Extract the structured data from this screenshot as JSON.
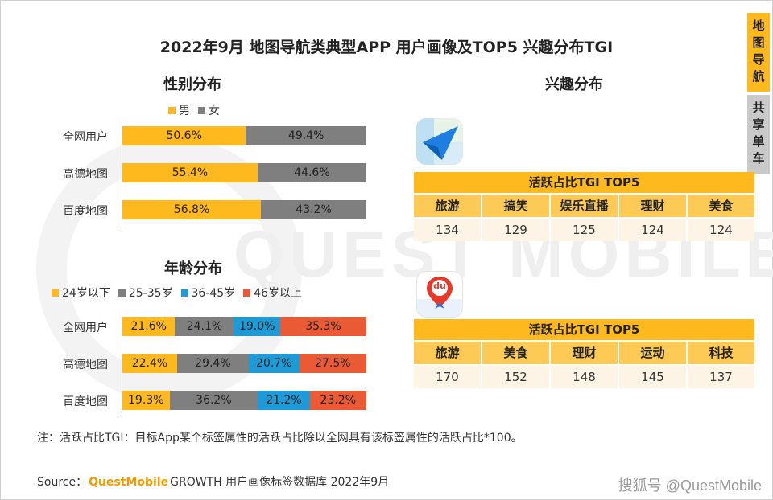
{
  "title": "2022年9月 地图导航类典型APP 用户画像及TOP5 兴趣分布TGI",
  "side_tabs": [
    {
      "label": "地图导航",
      "active": true
    },
    {
      "label": "共享单车",
      "active": false
    }
  ],
  "watermark": "QUEST MOBILE",
  "gender": {
    "section_title": "性别分布",
    "legend": [
      "男",
      "女"
    ],
    "colors": [
      "#fdb91d",
      "#7f7f7f"
    ],
    "rows": [
      {
        "label": "全网用户",
        "values": [
          "50.6%",
          "49.4%"
        ]
      },
      {
        "label": "高德地图",
        "values": [
          "55.4%",
          "44.6%"
        ]
      },
      {
        "label": "百度地图",
        "values": [
          "56.8%",
          "43.2%"
        ]
      }
    ]
  },
  "age": {
    "section_title": "年龄分布",
    "legend": [
      "24岁以下",
      "25-35岁",
      "36-45岁",
      "46岁以上"
    ],
    "colors": [
      "#fdb91d",
      "#7f7f7f",
      "#1e9ad6",
      "#ea5a35"
    ],
    "rows": [
      {
        "label": "全网用户",
        "values": [
          "21.6%",
          "24.1%",
          "19.0%",
          "35.3%"
        ]
      },
      {
        "label": "高德地图",
        "values": [
          "22.4%",
          "29.4%",
          "20.7%",
          "27.5%"
        ]
      },
      {
        "label": "百度地图",
        "values": [
          "19.3%",
          "36.2%",
          "21.2%",
          "23.2%"
        ]
      }
    ]
  },
  "interest": {
    "section_title": "兴趣分布",
    "tables": [
      {
        "app_icon": "amap-navigation-icon",
        "header": "活跃占比TGI TOP5",
        "columns": [
          "旅游",
          "搞笑",
          "娱乐直播",
          "理财",
          "美食"
        ],
        "values": [
          "134",
          "129",
          "125",
          "124",
          "124"
        ]
      },
      {
        "app_icon": "baidu-map-icon",
        "app_icon_text": "du",
        "header": "活跃占比TGI TOP5",
        "columns": [
          "旅游",
          "美食",
          "理财",
          "运动",
          "科技"
        ],
        "values": [
          "170",
          "152",
          "148",
          "145",
          "137"
        ]
      }
    ]
  },
  "note": "注：活跃占比TGI：目标App某个标签属性的活跃占比除以全网具有该标签属性的活跃占比*100。",
  "source": {
    "prefix": "Source：",
    "brand": "QuestMobile",
    "suffix": "GROWTH 用户画像标签数据库 2022年9月"
  },
  "footer_right": "搜狐号 @QuestMobile",
  "chart_data": [
    {
      "type": "bar",
      "orientation": "horizontal-stacked-100",
      "title": "性别分布",
      "categories": [
        "全网用户",
        "高德地图",
        "百度地图"
      ],
      "series": [
        {
          "name": "男",
          "values": [
            50.6,
            55.4,
            56.8
          ]
        },
        {
          "name": "女",
          "values": [
            49.4,
            44.6,
            43.2
          ]
        }
      ],
      "legend": "top"
    },
    {
      "type": "bar",
      "orientation": "horizontal-stacked-100",
      "title": "年龄分布",
      "categories": [
        "全网用户",
        "高德地图",
        "百度地图"
      ],
      "series": [
        {
          "name": "24岁以下",
          "values": [
            21.6,
            22.4,
            19.3
          ]
        },
        {
          "name": "25-35岁",
          "values": [
            24.1,
            29.4,
            36.2
          ]
        },
        {
          "name": "36-45岁",
          "values": [
            19.0,
            20.7,
            21.2
          ]
        },
        {
          "name": "46岁以上",
          "values": [
            35.3,
            27.5,
            23.2
          ]
        }
      ],
      "legend": "top"
    },
    {
      "type": "table",
      "title": "活跃占比TGI TOP5",
      "columns": [
        "旅游",
        "搞笑",
        "娱乐直播",
        "理财",
        "美食"
      ],
      "values": [
        134,
        129,
        125,
        124,
        124
      ]
    },
    {
      "type": "table",
      "title": "活跃占比TGI TOP5",
      "columns": [
        "旅游",
        "美食",
        "理财",
        "运动",
        "科技"
      ],
      "values": [
        170,
        152,
        148,
        145,
        137
      ]
    }
  ]
}
